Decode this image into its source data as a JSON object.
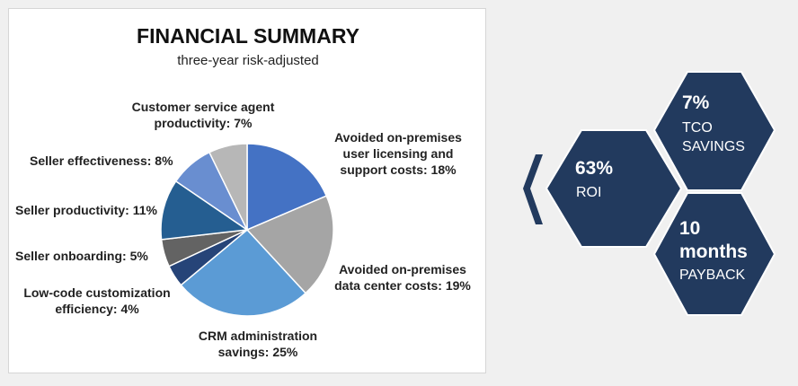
{
  "summary": {
    "title": "FINANCIAL SUMMARY",
    "subtitle": "three-year risk-adjusted"
  },
  "chart_data": {
    "type": "pie",
    "title": "FINANCIAL SUMMARY",
    "subtitle": "three-year risk-adjusted",
    "slices": [
      {
        "label": "Avoided on-premises user licensing and support costs: 18%",
        "value": 18,
        "color": "#4472c4"
      },
      {
        "label": "Avoided on-premises data center costs: 19%",
        "value": 19,
        "color": "#a5a5a5"
      },
      {
        "label": "CRM administration savings: 25%",
        "value": 25,
        "color": "#5b9bd5"
      },
      {
        "label": "Low-code customization efficiency: 4%",
        "value": 4,
        "color": "#264478"
      },
      {
        "label": "Seller onboarding: 5%",
        "value": 5,
        "color": "#636363"
      },
      {
        "label": "Seller productivity: 11%",
        "value": 11,
        "color": "#255e91"
      },
      {
        "label": "Seller effectiveness: 8%",
        "value": 8,
        "color": "#698ed0"
      },
      {
        "label": "Customer service agent productivity: 7%",
        "value": 7,
        "color": "#b7b7b7"
      }
    ]
  },
  "slice_label_lines": [
    [
      "Avoided on-premises",
      "user licensing and",
      "support costs: 18%"
    ],
    [
      "Avoided on-premises",
      "data center costs: 19%"
    ],
    [
      "CRM administration",
      "savings: 25%"
    ],
    [
      "Low-code customization",
      "efficiency: 4%"
    ],
    [
      "Seller onboarding: 5%"
    ],
    [
      "Seller productivity: 11%"
    ],
    [
      "Seller effectiveness: 8%"
    ],
    [
      "Customer service agent",
      "productivity: 7%"
    ]
  ],
  "metrics": {
    "roi": {
      "value": "63%",
      "label": "ROI"
    },
    "tco": {
      "value": "7%",
      "label_line1": "TCO",
      "label_line2": "SAVINGS"
    },
    "payback": {
      "value_line1": "10",
      "value_line2": "months",
      "label": "PAYBACK"
    }
  },
  "colors": {
    "hex_fill": "#223a5e",
    "hex_border": "#ffffff",
    "chevron": "#223a5e",
    "background": "#f0f0f0"
  }
}
